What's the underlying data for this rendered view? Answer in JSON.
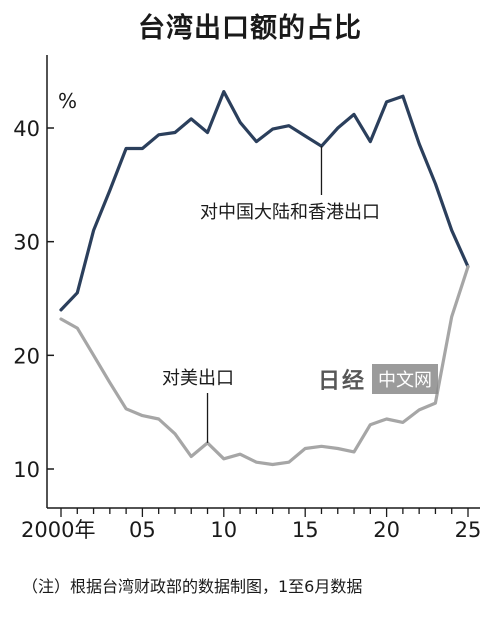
{
  "chart_data": {
    "type": "line",
    "title": "台湾出口额的占比",
    "ylabel": "%",
    "xlabel": "",
    "xlim": [
      2000,
      2025
    ],
    "ylim": [
      6,
      47
    ],
    "x_tick_labels": [
      "2000年",
      "05",
      "10",
      "15",
      "20",
      "25"
    ],
    "x_tick_values": [
      2000,
      2005,
      2010,
      2015,
      2020,
      2025
    ],
    "y_tick_values": [
      10,
      20,
      30,
      40
    ],
    "x": [
      2000,
      2001,
      2002,
      2003,
      2004,
      2005,
      2006,
      2007,
      2008,
      2009,
      2010,
      2011,
      2012,
      2013,
      2014,
      2015,
      2016,
      2017,
      2018,
      2019,
      2020,
      2021,
      2022,
      2023,
      2024,
      2025
    ],
    "series": [
      {
        "name": "对中国大陆和香港出口",
        "color": "#2b3f5c",
        "values": [
          24.0,
          25.5,
          31.0,
          34.5,
          38.2,
          38.2,
          39.4,
          39.6,
          40.8,
          39.6,
          43.2,
          40.5,
          38.8,
          39.9,
          40.2,
          39.3,
          38.4,
          40.0,
          41.2,
          38.8,
          42.3,
          42.8,
          38.6,
          35.1,
          31.0,
          27.8
        ]
      },
      {
        "name": "对美出口",
        "color": "#a6a6a6",
        "values": [
          23.2,
          22.4,
          20.0,
          17.6,
          15.3,
          14.7,
          14.4,
          13.1,
          11.1,
          12.3,
          10.9,
          11.3,
          10.6,
          10.4,
          10.6,
          11.8,
          12.0,
          11.8,
          11.5,
          13.9,
          14.4,
          14.1,
          15.2,
          15.8,
          23.4,
          27.8
        ]
      }
    ]
  },
  "annotations": {
    "china_label": "对中国大陆和香港出口",
    "us_label": "对美出口"
  },
  "watermark": {
    "logo_text": "日经",
    "box_text": "中文网"
  },
  "note": "（注）根据台湾财政部的数据制图，1至6月数据"
}
